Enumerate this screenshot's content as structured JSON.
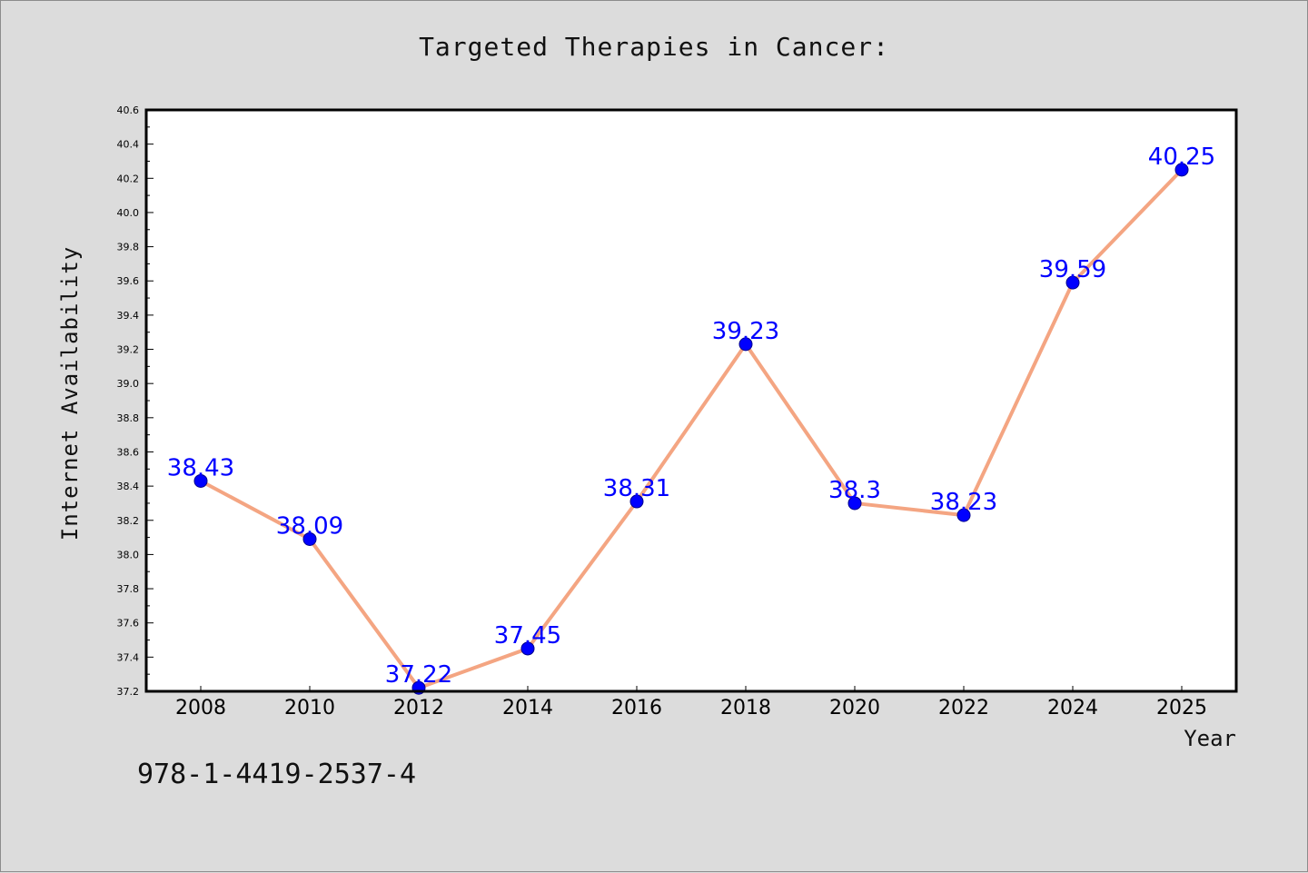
{
  "chart_data": {
    "type": "line",
    "title": "Targeted Therapies in Cancer:",
    "xlabel": "Year",
    "ylabel": "Internet Availability",
    "categories": [
      "2008",
      "2010",
      "2012",
      "2014",
      "2016",
      "2018",
      "2020",
      "2022",
      "2024",
      "2025"
    ],
    "values": [
      38.43,
      38.09,
      37.22,
      37.45,
      38.31,
      39.23,
      38.3,
      38.23,
      39.59,
      40.25
    ],
    "data_labels": [
      "38.43",
      "38.09",
      "37.22",
      "37.45",
      "38.31",
      "39.23",
      "38.3",
      "38.23",
      "39.59",
      "40.25"
    ],
    "ylim": [
      37.2,
      40.6
    ],
    "yticks": [
      "37.2",
      "37.4",
      "37.6",
      "37.8",
      "38.0",
      "38.2",
      "38.4",
      "38.6",
      "38.8",
      "39.0",
      "39.2",
      "39.4",
      "39.6",
      "39.8",
      "40.0",
      "40.2",
      "40.4",
      "40.6"
    ],
    "grid": false,
    "legend": "none",
    "colors": {
      "line": "#f4a582",
      "marker": "#0000ff",
      "label": "#0000ff",
      "background": "#dcdcdc",
      "plot_background": "#ffffff"
    }
  },
  "footer_code": "978-1-4419-2537-4"
}
